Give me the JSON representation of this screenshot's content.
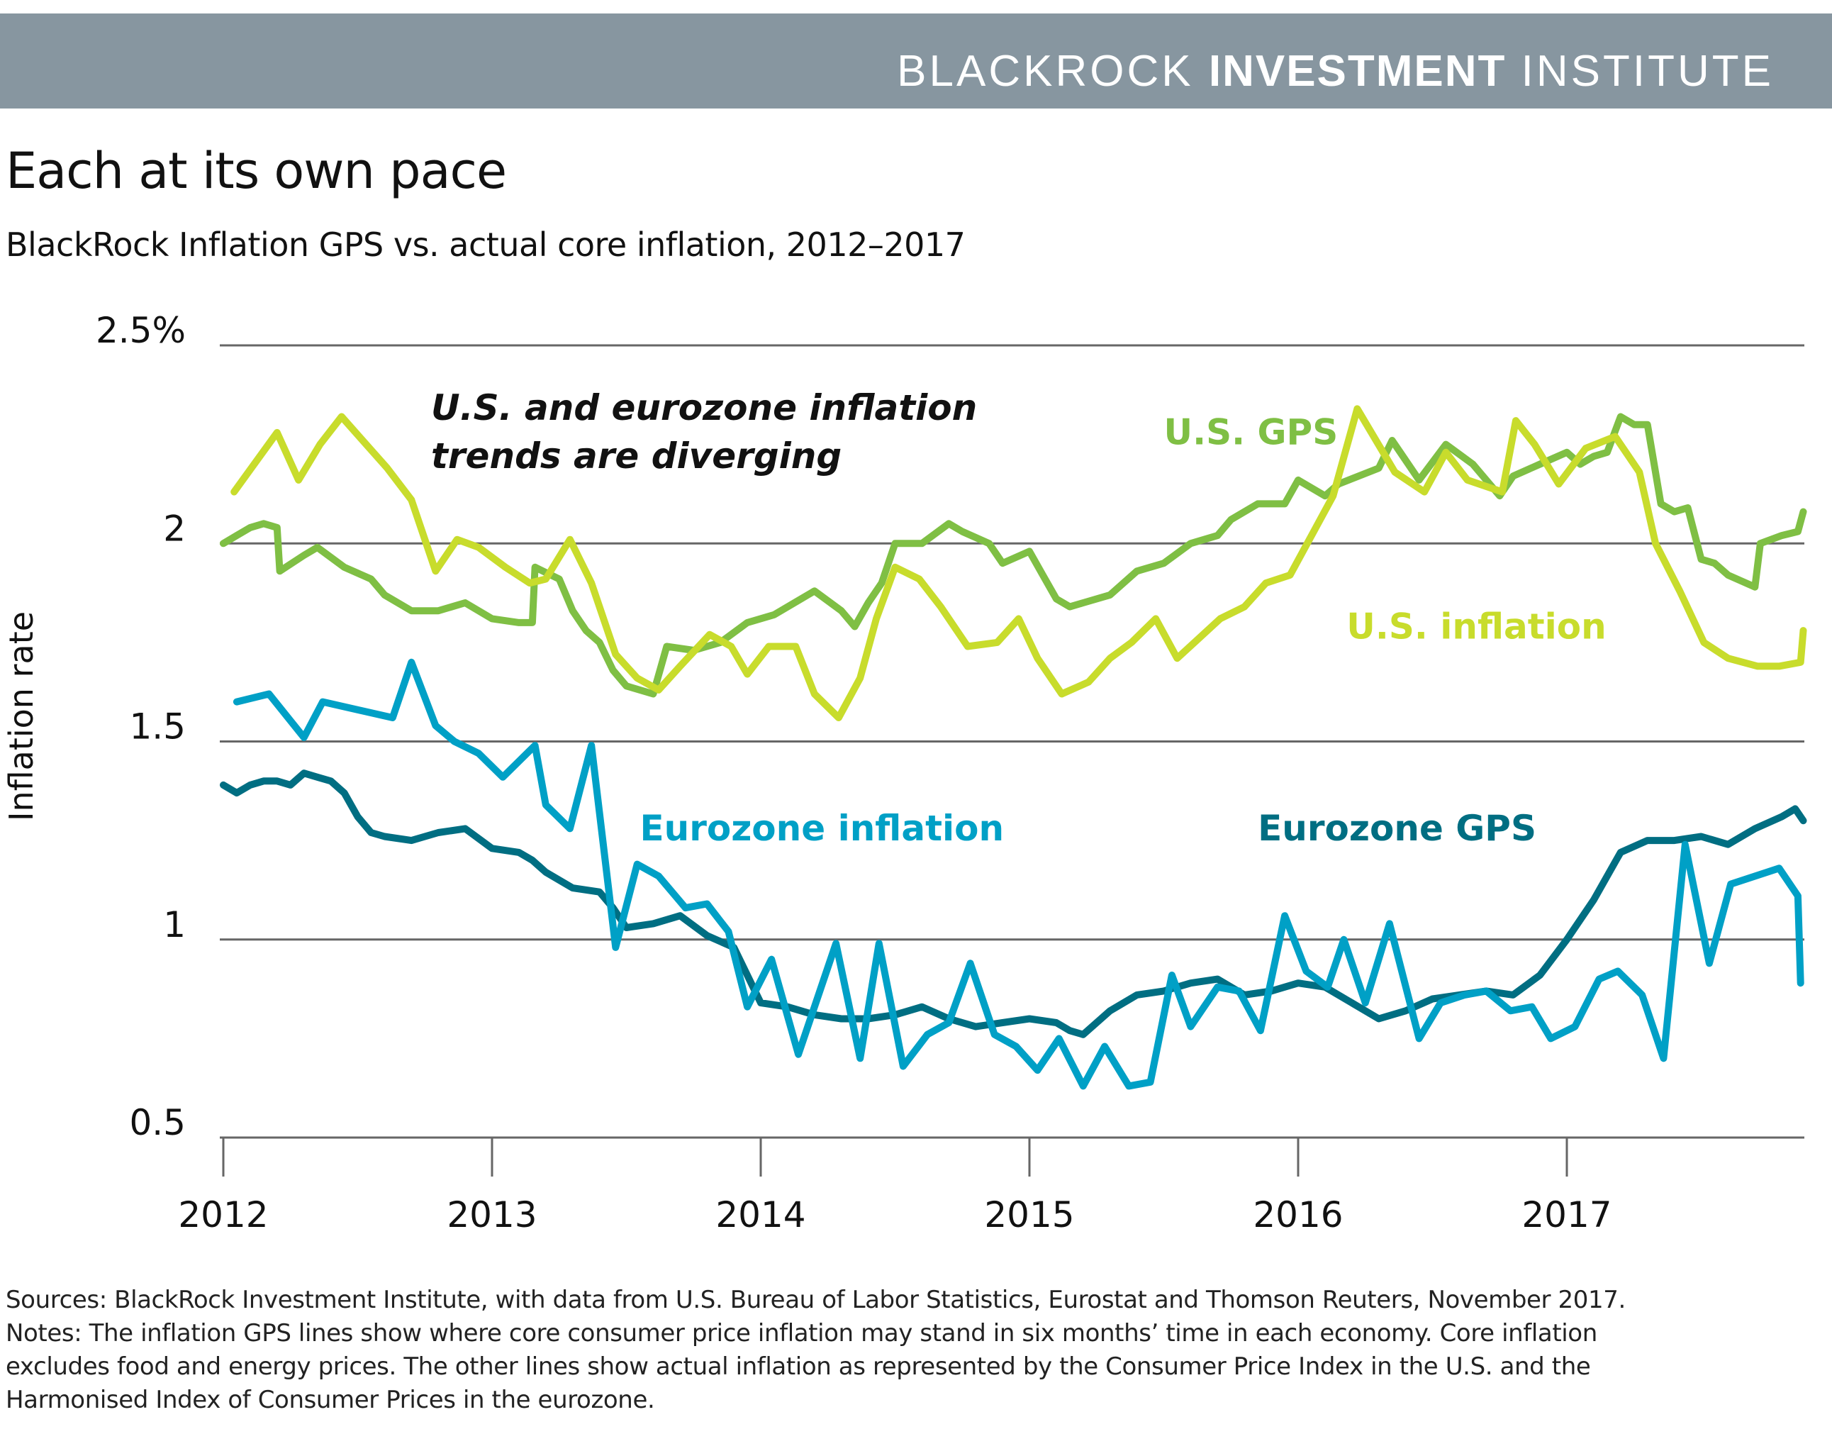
{
  "header": {
    "brand_light": "BLACKROCK ",
    "brand_bold": "INVESTMENT",
    "brand_light2": " INSTITUTE",
    "color": "#8796a0"
  },
  "title": "Each at its own pace",
  "subtitle": "BlackRock Inflation GPS vs. actual core inflation, 2012–2017",
  "footer": {
    "lines": [
      "Sources: BlackRock Investment Institute, with data from U.S. Bureau of Labor Statistics, Eurostat and Thomson Reuters, November 2017.",
      "Notes: The inflation GPS lines show where core consumer price inflation may stand in six months’ time in each economy. Core inflation",
      "excludes food and energy prices. The other lines show actual inflation as represented by the Consumer Price Index in the U.S. and the",
      "Harmonised Index of Consumer Prices in the eurozone."
    ]
  },
  "chart_data": {
    "type": "line",
    "title": "Each at its own pace",
    "subtitle": "BlackRock Inflation GPS vs. actual core inflation, 2012–2017",
    "xlabel": "",
    "ylabel": "Inflation rate",
    "xlim": [
      2012,
      2017.9
    ],
    "ylim": [
      0.5,
      2.5
    ],
    "grid": true,
    "x_ticks": [
      2012,
      2013,
      2014,
      2015,
      2016,
      2017
    ],
    "x_tick_labels": [
      "2012",
      "2013",
      "2014",
      "2015",
      "2016",
      "2017"
    ],
    "y_ticks": [
      0.5,
      1,
      1.5,
      2,
      2.5
    ],
    "y_tick_labels": [
      "0.5",
      "1",
      "1.5",
      "2",
      "2.5%"
    ],
    "annotation": [
      "U.S. and eurozone inflation",
      "trends are diverging"
    ],
    "series": [
      {
        "name": "U.S. GPS",
        "label": "U.S. GPS",
        "color": "#7fbf44",
        "label_pos": [
          2015.5,
          2.25
        ],
        "x": [
          2012.0,
          2012.05,
          2012.1,
          2012.15,
          2012.2,
          2012.21,
          2012.3,
          2012.35,
          2012.45,
          2012.55,
          2012.6,
          2012.7,
          2012.8,
          2012.9,
          2013.0,
          2013.1,
          2013.15,
          2013.16,
          2013.25,
          2013.3,
          2013.35,
          2013.4,
          2013.45,
          2013.5,
          2013.6,
          2013.65,
          2013.75,
          2013.85,
          2013.95,
          2014.05,
          2014.15,
          2014.2,
          2014.3,
          2014.35,
          2014.4,
          2014.45,
          2014.5,
          2014.6,
          2014.7,
          2014.75,
          2014.85,
          2014.9,
          2015.0,
          2015.05,
          2015.1,
          2015.15,
          2015.2,
          2015.3,
          2015.4,
          2015.5,
          2015.6,
          2015.7,
          2015.75,
          2015.85,
          2015.95,
          2016.0,
          2016.1,
          2016.15,
          2016.3,
          2016.35,
          2016.45,
          2016.55,
          2016.65,
          2016.75,
          2016.8,
          2016.9,
          2017.0,
          2017.05,
          2017.1,
          2017.15,
          2017.2,
          2017.25,
          2017.3,
          2017.35,
          2017.4,
          2017.45,
          2017.5,
          2017.55,
          2017.6,
          2017.7,
          2017.72,
          2017.8,
          2017.86,
          2017.88
        ],
        "values": [
          2.0,
          2.02,
          2.04,
          2.05,
          2.04,
          1.93,
          1.97,
          1.99,
          1.94,
          1.91,
          1.87,
          1.83,
          1.83,
          1.85,
          1.81,
          1.8,
          1.8,
          1.94,
          1.91,
          1.83,
          1.78,
          1.75,
          1.68,
          1.64,
          1.62,
          1.74,
          1.73,
          1.75,
          1.8,
          1.82,
          1.86,
          1.88,
          1.83,
          1.79,
          1.85,
          1.9,
          2.0,
          2.0,
          2.05,
          2.03,
          2.0,
          1.95,
          1.98,
          1.92,
          1.86,
          1.84,
          1.85,
          1.87,
          1.93,
          1.95,
          2.0,
          2.02,
          2.06,
          2.1,
          2.1,
          2.16,
          2.12,
          2.15,
          2.19,
          2.26,
          2.16,
          2.25,
          2.2,
          2.12,
          2.17,
          2.2,
          2.23,
          2.2,
          2.22,
          2.23,
          2.32,
          2.3,
          2.3,
          2.1,
          2.08,
          2.09,
          1.96,
          1.95,
          1.92,
          1.89,
          2.0,
          2.02,
          2.03,
          2.08
        ]
      },
      {
        "name": "U.S. inflation",
        "label": "U.S. inflation",
        "color": "#c8dc2c",
        "label_pos": [
          2016.18,
          1.76
        ],
        "x": [
          2012.04,
          2012.2,
          2012.28,
          2012.36,
          2012.44,
          2012.61,
          2012.7,
          2012.79,
          2012.87,
          2012.95,
          2013.05,
          2013.14,
          2013.2,
          2013.29,
          2013.37,
          2013.46,
          2013.54,
          2013.62,
          2013.7,
          2013.81,
          2013.89,
          2013.95,
          2014.03,
          2014.13,
          2014.2,
          2014.29,
          2014.37,
          2014.43,
          2014.5,
          2014.59,
          2014.67,
          2014.77,
          2014.88,
          2014.96,
          2015.03,
          2015.12,
          2015.22,
          2015.3,
          2015.38,
          2015.47,
          2015.55,
          2015.63,
          2015.71,
          2015.8,
          2015.88,
          2015.97,
          2016.05,
          2016.13,
          2016.22,
          2016.36,
          2016.47,
          2016.55,
          2016.63,
          2016.76,
          2016.81,
          2016.88,
          2016.97,
          2017.07,
          2017.18,
          2017.27,
          2017.33,
          2017.42,
          2017.51,
          2017.6,
          2017.71,
          2017.79,
          2017.87,
          2017.88
        ],
        "values": [
          2.13,
          2.28,
          2.16,
          2.25,
          2.32,
          2.19,
          2.11,
          1.93,
          2.01,
          1.99,
          1.94,
          1.9,
          1.91,
          2.01,
          1.9,
          1.72,
          1.66,
          1.63,
          1.69,
          1.77,
          1.74,
          1.67,
          1.74,
          1.74,
          1.62,
          1.56,
          1.66,
          1.81,
          1.94,
          1.91,
          1.84,
          1.74,
          1.75,
          1.81,
          1.71,
          1.62,
          1.65,
          1.71,
          1.75,
          1.81,
          1.71,
          1.76,
          1.81,
          1.84,
          1.9,
          1.92,
          2.02,
          2.12,
          2.34,
          2.18,
          2.13,
          2.23,
          2.16,
          2.13,
          2.31,
          2.25,
          2.15,
          2.24,
          2.27,
          2.18,
          2.0,
          1.88,
          1.75,
          1.71,
          1.69,
          1.69,
          1.7,
          1.78
        ]
      },
      {
        "name": "Eurozone inflation",
        "label": "Eurozone inflation",
        "color": "#00a0c6",
        "label_pos": [
          2013.55,
          1.25
        ],
        "x": [
          2012.05,
          2012.17,
          2012.3,
          2012.37,
          2012.63,
          2012.7,
          2012.79,
          2012.86,
          2012.95,
          2013.04,
          2013.16,
          2013.2,
          2013.29,
          2013.37,
          2013.46,
          2013.54,
          2013.62,
          2013.72,
          2013.8,
          2013.88,
          2013.95,
          2014.04,
          2014.14,
          2014.28,
          2014.37,
          2014.44,
          2014.53,
          2014.62,
          2014.7,
          2014.78,
          2014.87,
          2014.95,
          2015.03,
          2015.11,
          2015.2,
          2015.28,
          2015.37,
          2015.45,
          2015.53,
          2015.6,
          2015.7,
          2015.78,
          2015.86,
          2015.95,
          2016.03,
          2016.11,
          2016.17,
          2016.25,
          2016.34,
          2016.45,
          2016.53,
          2016.62,
          2016.7,
          2016.79,
          2016.87,
          2016.94,
          2017.03,
          2017.12,
          2017.19,
          2017.28,
          2017.36,
          2017.44,
          2017.53,
          2017.61,
          2017.79,
          2017.86,
          2017.87
        ],
        "values": [
          1.6,
          1.62,
          1.51,
          1.6,
          1.56,
          1.7,
          1.54,
          1.5,
          1.47,
          1.41,
          1.49,
          1.34,
          1.28,
          1.49,
          0.98,
          1.19,
          1.16,
          1.08,
          1.09,
          1.02,
          0.83,
          0.95,
          0.71,
          0.99,
          0.7,
          0.99,
          0.68,
          0.76,
          0.79,
          0.94,
          0.76,
          0.73,
          0.67,
          0.75,
          0.63,
          0.73,
          0.63,
          0.64,
          0.91,
          0.78,
          0.88,
          0.87,
          0.77,
          1.06,
          0.92,
          0.88,
          1.0,
          0.84,
          1.04,
          0.75,
          0.84,
          0.86,
          0.87,
          0.82,
          0.83,
          0.75,
          0.78,
          0.9,
          0.92,
          0.86,
          0.7,
          1.24,
          0.94,
          1.14,
          1.18,
          1.11,
          0.89
        ]
      },
      {
        "name": "Eurozone GPS",
        "label": "Eurozone GPS",
        "color": "#006e82",
        "label_pos": [
          2015.85,
          1.25
        ],
        "x": [
          2012.0,
          2012.05,
          2012.1,
          2012.15,
          2012.2,
          2012.25,
          2012.3,
          2012.35,
          2012.4,
          2012.45,
          2012.5,
          2012.55,
          2012.6,
          2012.7,
          2012.8,
          2012.9,
          2013.0,
          2013.1,
          2013.15,
          2013.2,
          2013.3,
          2013.4,
          2013.45,
          2013.5,
          2013.6,
          2013.7,
          2013.8,
          2013.9,
          2014.0,
          2014.1,
          2014.2,
          2014.3,
          2014.4,
          2014.5,
          2014.6,
          2014.7,
          2014.8,
          2014.9,
          2015.0,
          2015.1,
          2015.15,
          2015.2,
          2015.3,
          2015.4,
          2015.5,
          2015.6,
          2015.7,
          2015.8,
          2015.9,
          2016.0,
          2016.1,
          2016.2,
          2016.3,
          2016.4,
          2016.5,
          2016.6,
          2016.7,
          2016.8,
          2016.9,
          2017.0,
          2017.1,
          2017.2,
          2017.3,
          2017.4,
          2017.5,
          2017.6,
          2017.7,
          2017.8,
          2017.85,
          2017.88
        ],
        "values": [
          1.39,
          1.37,
          1.39,
          1.4,
          1.4,
          1.39,
          1.42,
          1.41,
          1.4,
          1.37,
          1.31,
          1.27,
          1.26,
          1.25,
          1.27,
          1.28,
          1.23,
          1.22,
          1.2,
          1.17,
          1.13,
          1.12,
          1.08,
          1.03,
          1.04,
          1.06,
          1.01,
          0.98,
          0.84,
          0.83,
          0.81,
          0.8,
          0.8,
          0.81,
          0.83,
          0.8,
          0.78,
          0.79,
          0.8,
          0.79,
          0.77,
          0.76,
          0.82,
          0.86,
          0.87,
          0.89,
          0.9,
          0.86,
          0.87,
          0.89,
          0.88,
          0.84,
          0.8,
          0.82,
          0.85,
          0.86,
          0.87,
          0.86,
          0.91,
          1.0,
          1.1,
          1.22,
          1.25,
          1.25,
          1.26,
          1.24,
          1.28,
          1.31,
          1.33,
          1.3
        ]
      }
    ]
  }
}
